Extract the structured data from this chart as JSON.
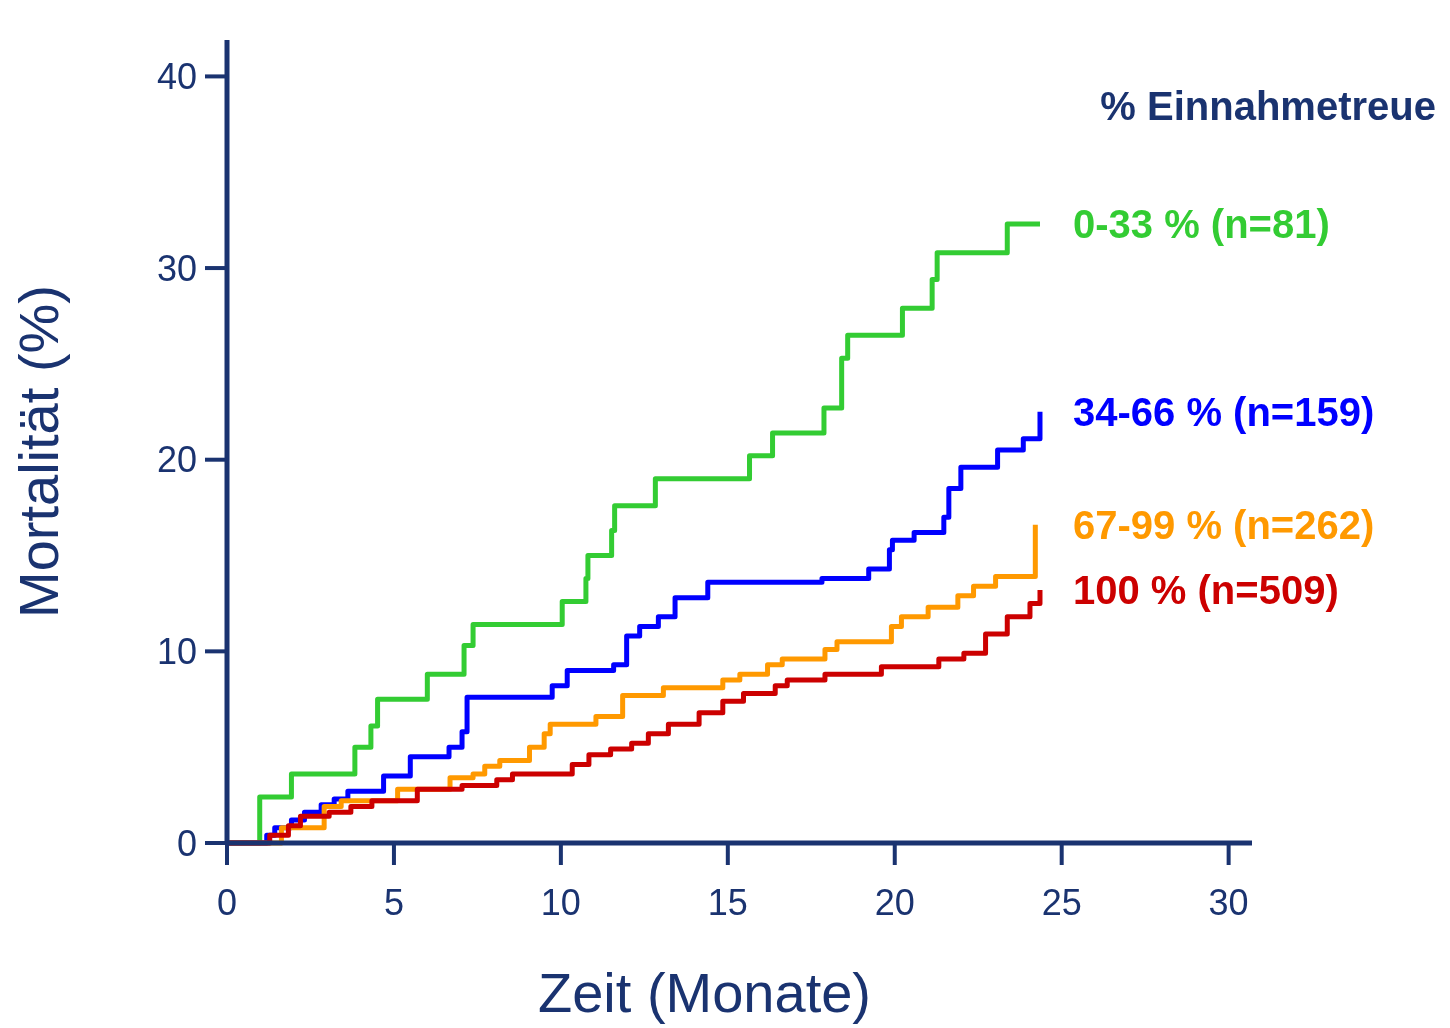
{
  "chart_data": {
    "type": "step",
    "xlabel": "Zeit (Monate)",
    "ylabel": "Mortalität (%)",
    "legend_title": "% Einnahmetreue",
    "legend": "right",
    "grid": false,
    "marker": "none",
    "line_style": "solid",
    "xlim": [
      0,
      30.7
    ],
    "ylim": [
      0,
      41.9
    ],
    "xticks": [
      0,
      5,
      10,
      15,
      20,
      25,
      30
    ],
    "yticks": [
      0,
      10,
      20,
      30,
      40
    ],
    "series": [
      {
        "name": "0-33 % (n=81)",
        "color": "#33cc33",
        "x": [
          0,
          0.98,
          1.93,
          3.83,
          4.31,
          4.51,
          6.0,
          7.1,
          7.37,
          10.04,
          10.75,
          10.81,
          11.52,
          11.61,
          12.83,
          15.65,
          16.34,
          17.88,
          18.41,
          18.59,
          20.23,
          21.12,
          21.27,
          23.37,
          24.35
        ],
        "values": [
          0,
          2.4,
          3.6,
          5.0,
          6.1,
          7.5,
          8.8,
          10.3,
          11.4,
          12.6,
          13.8,
          15.0,
          16.3,
          17.6,
          19.0,
          20.2,
          21.4,
          22.7,
          25.3,
          26.5,
          27.9,
          29.4,
          30.8,
          32.3,
          32.3
        ]
      },
      {
        "name": "34-66 % (n=159)",
        "color": "#0000ff",
        "x": [
          0,
          1.19,
          1.43,
          1.93,
          2.32,
          2.82,
          3.21,
          3.62,
          4.69,
          5.49,
          6.65,
          7.04,
          7.19,
          9.74,
          10.19,
          11.58,
          11.97,
          12.36,
          12.92,
          13.42,
          14.4,
          17.82,
          19.22,
          19.84,
          19.93,
          20.58,
          21.47,
          21.62,
          21.98,
          23.08,
          23.85,
          24.35
        ],
        "values": [
          0,
          0.4,
          0.8,
          1.2,
          1.6,
          2.0,
          2.3,
          2.7,
          3.5,
          4.5,
          5.0,
          5.8,
          7.6,
          8.2,
          9.0,
          9.3,
          10.8,
          11.3,
          11.8,
          12.8,
          13.6,
          13.8,
          14.3,
          15.3,
          15.8,
          16.2,
          17.0,
          18.5,
          19.6,
          20.5,
          21.1,
          22.5
        ]
      },
      {
        "name": "67-99 % (n=262)",
        "color": "#ff9900",
        "x": [
          0,
          1.63,
          2.91,
          3.42,
          5.11,
          6.68,
          7.37,
          7.72,
          8.17,
          9.06,
          9.5,
          9.68,
          11.05,
          11.85,
          13.07,
          14.85,
          15.36,
          16.19,
          16.63,
          17.91,
          18.27,
          19.9,
          20.2,
          21.0,
          21.89,
          22.36,
          23.02,
          24.21
        ],
        "values": [
          0,
          0.8,
          1.9,
          2.2,
          2.8,
          3.4,
          3.6,
          4.0,
          4.3,
          5.0,
          5.7,
          6.2,
          6.6,
          7.7,
          8.1,
          8.5,
          8.8,
          9.3,
          9.6,
          10.1,
          10.5,
          11.3,
          11.8,
          12.3,
          12.9,
          13.4,
          13.9,
          16.6
        ]
      },
      {
        "name": "100 % (n=509)",
        "color": "#cc0000",
        "x": [
          0,
          1.28,
          1.84,
          2.2,
          3.06,
          3.71,
          4.34,
          5.7,
          7.04,
          8.08,
          8.55,
          10.34,
          10.84,
          11.49,
          12.12,
          12.62,
          13.22,
          14.14,
          14.85,
          15.47,
          16.42,
          16.78,
          17.91,
          19.6,
          21.32,
          22.07,
          22.72,
          23.37,
          24.05,
          24.35
        ],
        "values": [
          0,
          0.4,
          0.9,
          1.4,
          1.6,
          1.9,
          2.2,
          2.8,
          3.0,
          3.3,
          3.6,
          4.1,
          4.6,
          4.9,
          5.2,
          5.7,
          6.2,
          6.8,
          7.4,
          7.8,
          8.2,
          8.5,
          8.8,
          9.2,
          9.6,
          9.9,
          10.9,
          11.8,
          12.5,
          13.2
        ]
      }
    ]
  }
}
